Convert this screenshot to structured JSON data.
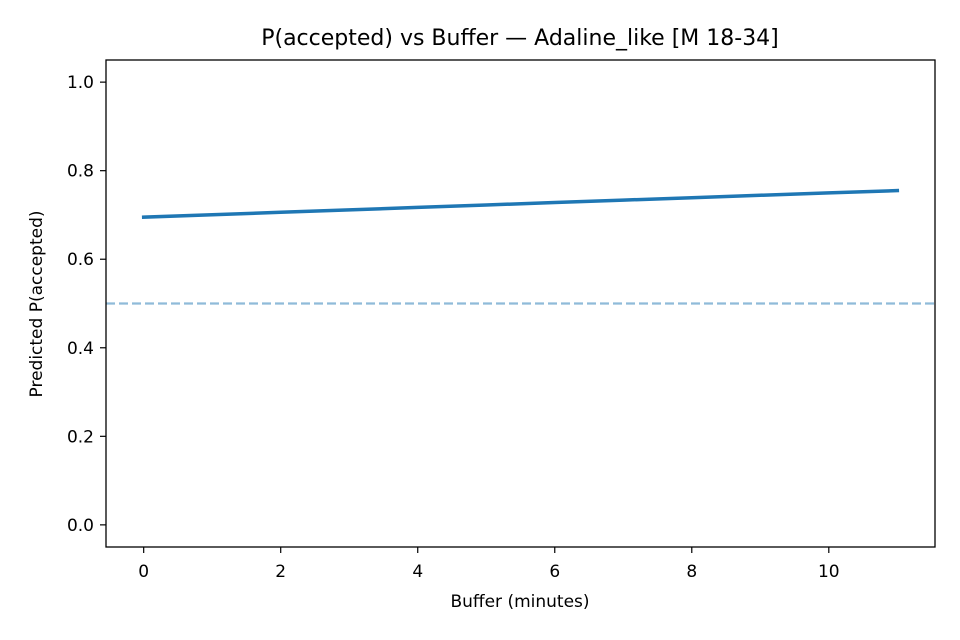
{
  "chart_data": {
    "type": "line",
    "title": "P(accepted) vs Buffer — Adaline_like [M 18-34]",
    "xlabel": "Buffer (minutes)",
    "ylabel": "Predicted P(accepted)",
    "xlim": [
      -0.55,
      11.55
    ],
    "ylim": [
      -0.05,
      1.05
    ],
    "xticks": [
      0,
      2,
      4,
      6,
      8,
      10
    ],
    "yticks": [
      0.0,
      0.2,
      0.4,
      0.6,
      0.8,
      1.0
    ],
    "xtick_labels": [
      "0",
      "2",
      "4",
      "6",
      "8",
      "10"
    ],
    "ytick_labels": [
      "0.0",
      "0.2",
      "0.4",
      "0.6",
      "0.8",
      "1.0"
    ],
    "grid": false,
    "series": [
      {
        "x": [
          0,
          1,
          2,
          3,
          4,
          5,
          6,
          7,
          8,
          9,
          10,
          11
        ],
        "y": [
          0.695,
          0.7005,
          0.706,
          0.7115,
          0.717,
          0.7225,
          0.728,
          0.7335,
          0.739,
          0.7445,
          0.75,
          0.755
        ],
        "color": "#1f77b4"
      }
    ],
    "reference_line": {
      "y": 0.5,
      "style": "dashed",
      "color": "#1f77b4"
    }
  }
}
